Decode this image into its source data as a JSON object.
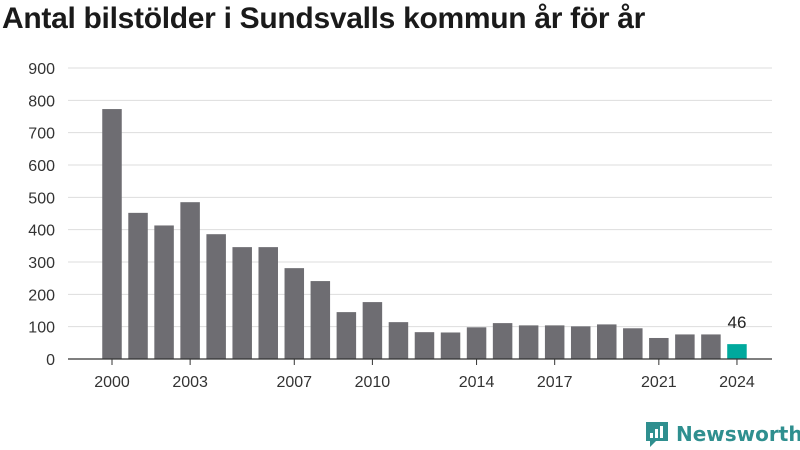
{
  "title": "Antal bilstölder i Sundsvalls kommun år för år",
  "brand": {
    "name": "Newsworthy",
    "color": "#2f8f8f"
  },
  "colors": {
    "bar": "#6e6d72",
    "highlight": "#00a99d",
    "grid": "#dddddd",
    "axis": "#333333"
  },
  "chart_data": {
    "type": "bar",
    "title": "Antal bilstölder i Sundsvalls kommun år för år",
    "x": [
      2000,
      2001,
      2002,
      2003,
      2004,
      2005,
      2006,
      2007,
      2008,
      2009,
      2010,
      2011,
      2012,
      2013,
      2014,
      2015,
      2016,
      2017,
      2018,
      2019,
      2020,
      2021,
      2022,
      2023,
      2024
    ],
    "values": [
      773,
      452,
      413,
      485,
      386,
      346,
      346,
      281,
      241,
      145,
      176,
      114,
      83,
      82,
      98,
      111,
      104,
      104,
      101,
      107,
      95,
      65,
      76,
      76,
      46
    ],
    "x_tick_labels": [
      "2000",
      "2003",
      "2007",
      "2010",
      "2014",
      "2017",
      "2021",
      "2024"
    ],
    "y_ticks": [
      0,
      100,
      200,
      300,
      400,
      500,
      600,
      700,
      800,
      900
    ],
    "ylim": [
      0,
      900
    ],
    "highlight": {
      "category": 2024,
      "label": "46"
    },
    "grid": true,
    "xlabel": "",
    "ylabel": ""
  }
}
